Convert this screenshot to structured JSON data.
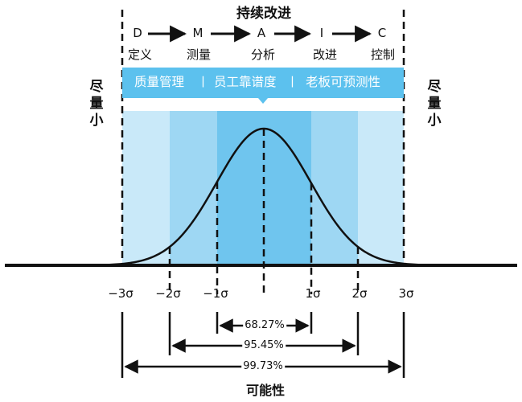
{
  "diagram": {
    "title": "持续改进",
    "dmaic_steps": [
      {
        "letter": "D",
        "label": "定义"
      },
      {
        "letter": "M",
        "label": "测量"
      },
      {
        "letter": "A",
        "label": "分析"
      },
      {
        "letter": "I",
        "label": "改进"
      },
      {
        "letter": "C",
        "label": "控制"
      }
    ],
    "side_left": "尽量小",
    "side_right": "尽量小",
    "band": {
      "items": [
        "质量管理",
        "员工靠谱度",
        "老板可预测性"
      ],
      "separator": "丨",
      "color": "#5cc1ee"
    },
    "axis_ticks": [
      "−3σ",
      "−2σ",
      "−1σ",
      "1σ",
      "2σ",
      "3σ"
    ],
    "ranges": [
      {
        "label": "68.27%"
      },
      {
        "label": "95.45%"
      },
      {
        "label": "99.73%"
      }
    ],
    "footer": "可能性",
    "colors": {
      "zone_outer": "#c9e9f9",
      "zone_middle": "#9ed7f3",
      "zone_inner": "#6fc5ee",
      "band": "#5cc1ee",
      "line": "#111111"
    }
  }
}
